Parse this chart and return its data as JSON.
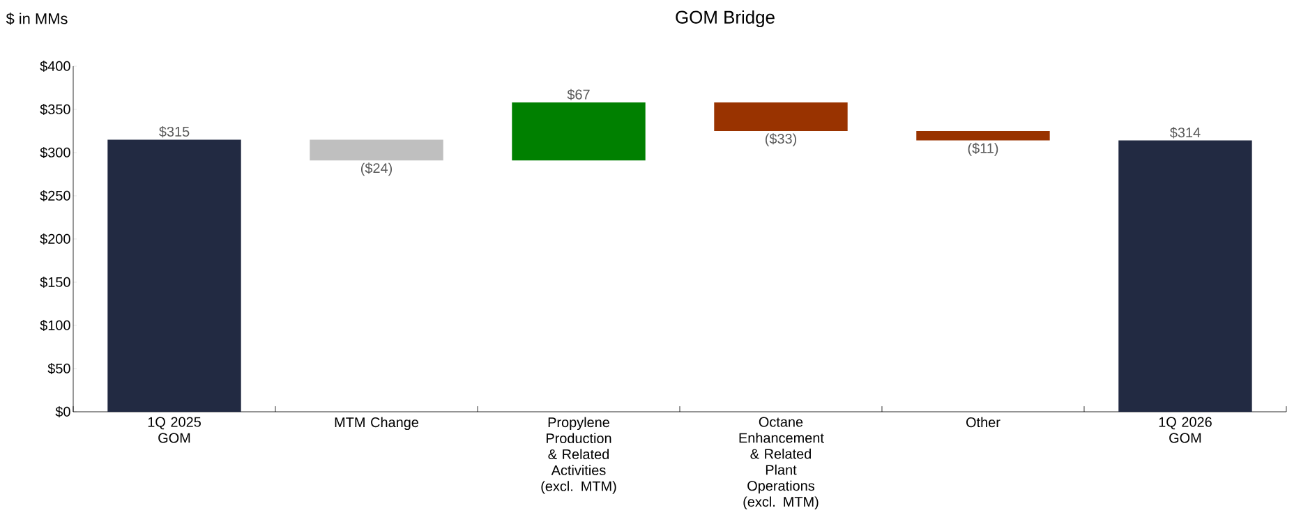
{
  "chart_data": {
    "type": "bar",
    "title": "GOM Bridge",
    "ylabel": "$ in MMs",
    "categories": [
      "1Q 2025 GOM",
      "MTM Change",
      "Propylene Production & Related Activities (excl. MTM)",
      "Octane Enhancement & Related Plant Operations (excl. MTM)",
      "Other",
      "1Q 2026 GOM"
    ],
    "values": [
      315,
      -24,
      67,
      -33,
      -11,
      314
    ],
    "base": [
      0,
      315,
      291,
      358,
      325,
      0
    ],
    "colors": [
      "#222a42",
      "#bfbfbf",
      "#008000",
      "#993300",
      "#993300",
      "#222a42"
    ],
    "value_labels": [
      "$315",
      "($24)",
      "$67",
      "($33)",
      "($11)",
      "$314"
    ],
    "ylim": [
      0,
      400
    ],
    "yticks": [
      {
        "value": 0,
        "label": "$0"
      },
      {
        "value": 50,
        "label": "$50"
      },
      {
        "value": 100,
        "label": "$100"
      },
      {
        "value": 150,
        "label": "$150"
      },
      {
        "value": 200,
        "label": "$200"
      },
      {
        "value": 250,
        "label": "$250"
      },
      {
        "value": 300,
        "label": "$300"
      },
      {
        "value": 350,
        "label": "$350"
      },
      {
        "value": 400,
        "label": "$400"
      }
    ],
    "grid": false
  }
}
